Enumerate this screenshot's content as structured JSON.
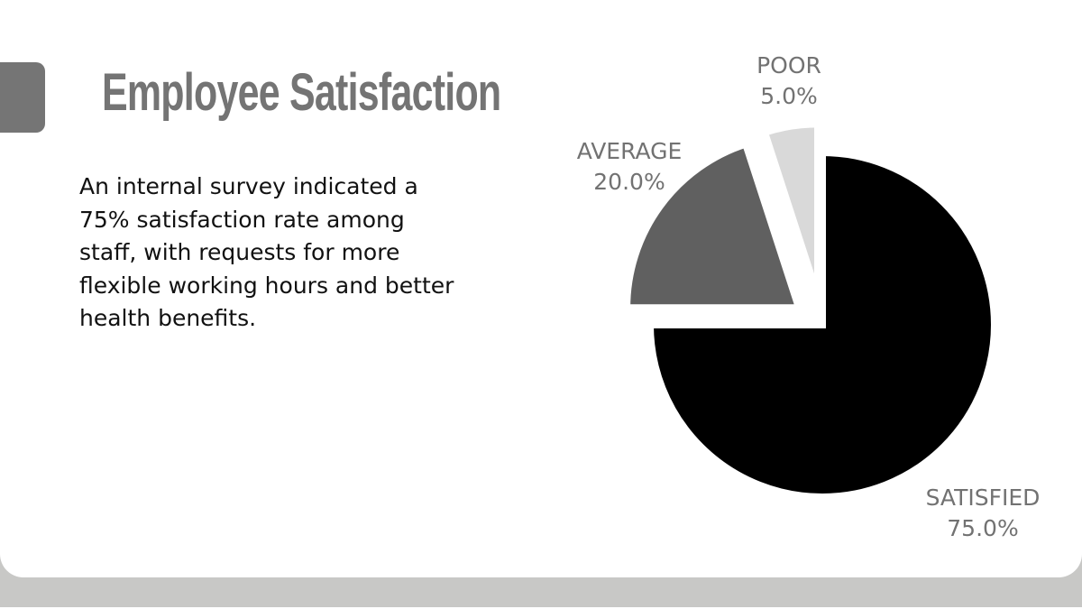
{
  "slide": {
    "title": "Employee Satisfaction",
    "body": "An internal survey indicated a 75% satisfaction rate among staff, with requests for more flexible working hours and better health benefits.",
    "colors": {
      "title": "#747474",
      "accent_tab": "#757575",
      "body_text": "#111111",
      "bottom_band": "#c8c8c6",
      "label_text": "#727272"
    }
  },
  "chart_data": {
    "type": "pie",
    "title": "",
    "categories": [
      "SATISFIED",
      "AVERAGE",
      "POOR"
    ],
    "values": [
      75.0,
      20.0,
      5.0
    ],
    "units": "%",
    "colors": [
      "#000000",
      "#606060",
      "#d9d9d9"
    ],
    "labels": [
      {
        "name": "SATISFIED",
        "value": "75.0%"
      },
      {
        "name": "AVERAGE",
        "value": "20.0%"
      },
      {
        "name": "POOR",
        "value": "5.0%"
      }
    ],
    "exploded": [
      "AVERAGE",
      "POOR"
    ],
    "start_angle": "12 o'clock, clockwise",
    "legend": "none (direct labels)"
  }
}
